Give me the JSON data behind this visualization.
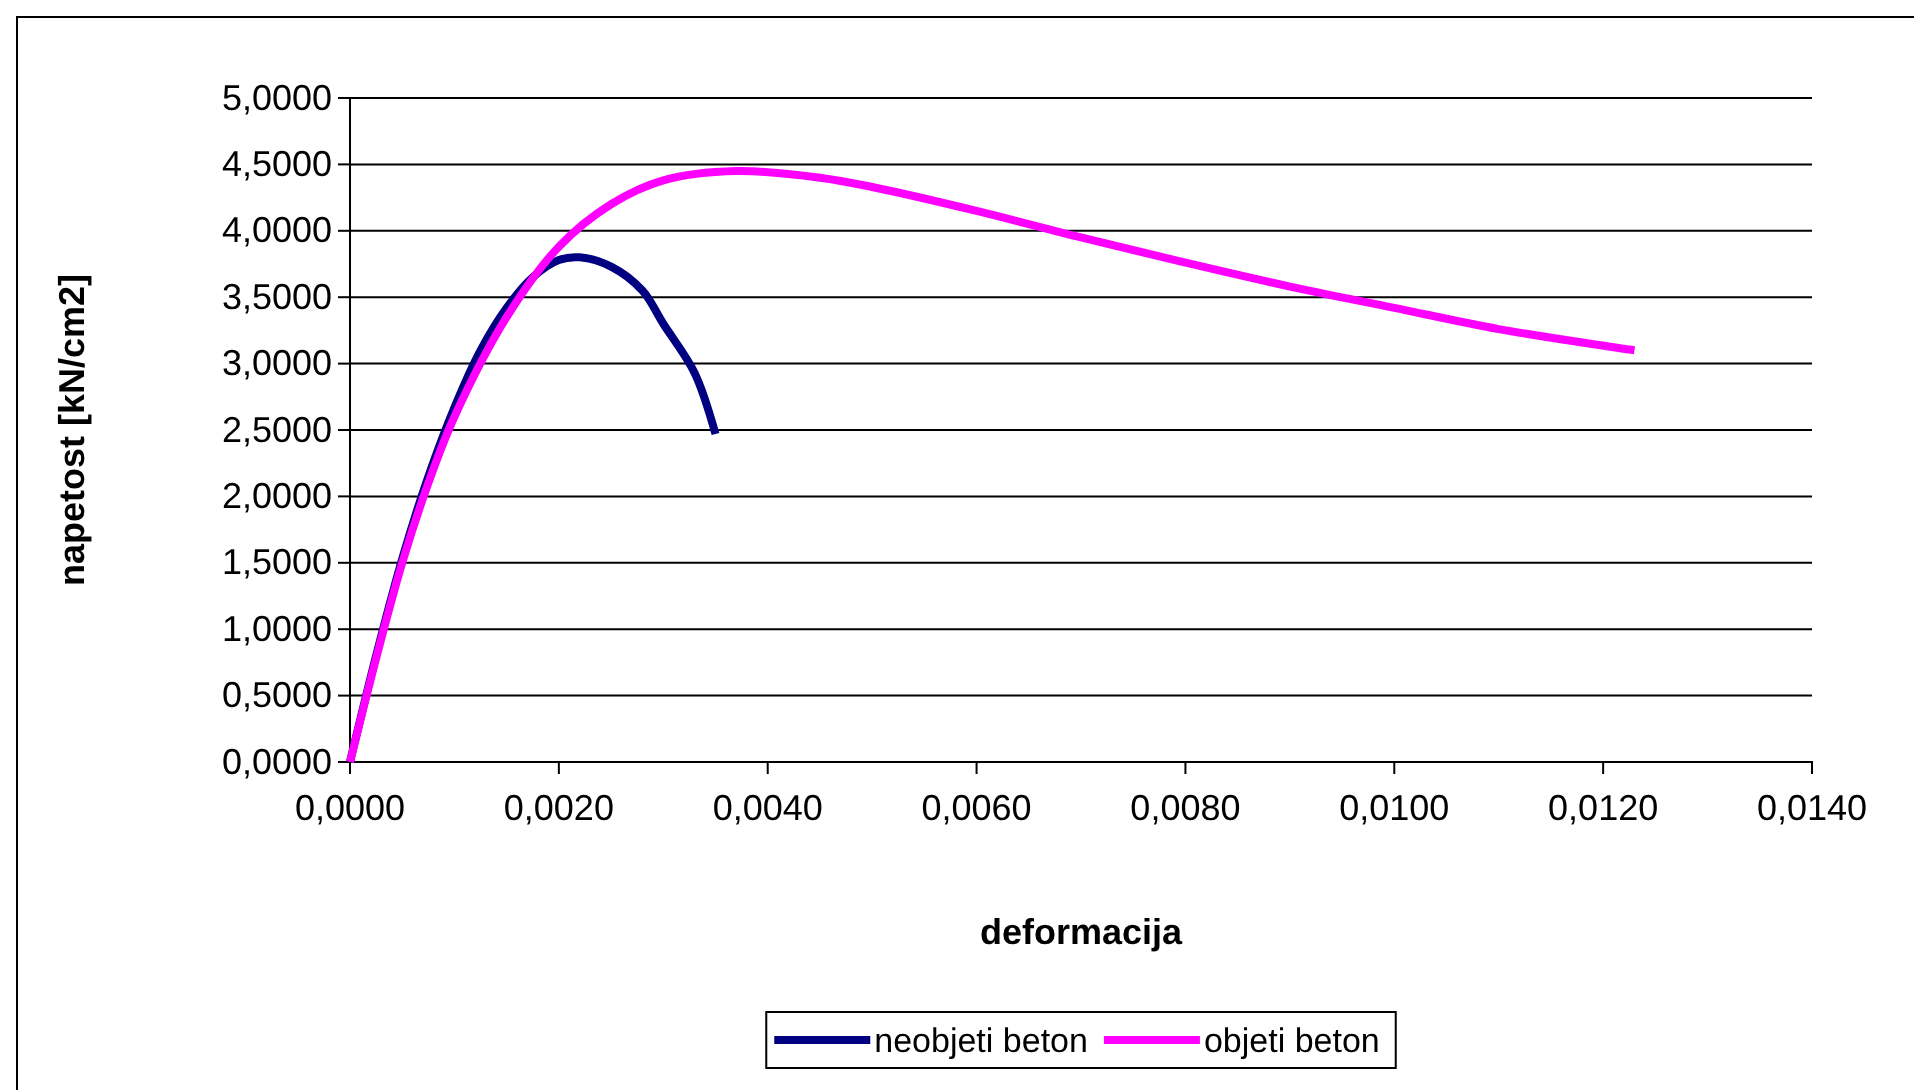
{
  "chart_data": {
    "type": "line",
    "xlabel": "deformacija",
    "ylabel": "napetost [kN/cm2]",
    "xlim": [
      0,
      0.014
    ],
    "ylim": [
      0,
      5
    ],
    "xticks": [
      {
        "value": 0,
        "label": "0,0000"
      },
      {
        "value": 0.002,
        "label": "0,0020"
      },
      {
        "value": 0.004,
        "label": "0,0040"
      },
      {
        "value": 0.006,
        "label": "0,0060"
      },
      {
        "value": 0.008,
        "label": "0,0080"
      },
      {
        "value": 0.01,
        "label": "0,0100"
      },
      {
        "value": 0.012,
        "label": "0,0120"
      },
      {
        "value": 0.014,
        "label": "0,0140"
      }
    ],
    "yticks": [
      {
        "value": 0,
        "label": "0,0000"
      },
      {
        "value": 0.5,
        "label": "0,5000"
      },
      {
        "value": 1,
        "label": "1,0000"
      },
      {
        "value": 1.5,
        "label": "1,5000"
      },
      {
        "value": 2,
        "label": "2,0000"
      },
      {
        "value": 2.5,
        "label": "2,5000"
      },
      {
        "value": 3,
        "label": "3,0000"
      },
      {
        "value": 3.5,
        "label": "3,5000"
      },
      {
        "value": 4,
        "label": "4,0000"
      },
      {
        "value": 4.5,
        "label": "4,5000"
      },
      {
        "value": 5,
        "label": "5,0000"
      }
    ],
    "grid": "y",
    "legend": "bottom",
    "marker": "none",
    "line_style": "solid",
    "series": [
      {
        "name": "neobjeti beton",
        "color": "#000080",
        "x": [
          0,
          0.00025,
          0.0005,
          0.00075,
          0.001,
          0.00125,
          0.0015,
          0.00175,
          0.002,
          0.0022,
          0.0025,
          0.0028,
          0.003,
          0.0033,
          0.0035
        ],
        "values": [
          0,
          0.8,
          1.53,
          2.15,
          2.67,
          3.1,
          3.42,
          3.65,
          3.78,
          3.8,
          3.73,
          3.55,
          3.3,
          2.93,
          2.47
        ]
      },
      {
        "name": "objeti beton",
        "color": "#ff00ff",
        "x": [
          0,
          0.00025,
          0.0005,
          0.00075,
          0.001,
          0.0015,
          0.002,
          0.0025,
          0.003,
          0.0037,
          0.0045,
          0.005,
          0.006,
          0.007,
          0.008,
          0.009,
          0.01,
          0.011,
          0.0123
        ],
        "values": [
          0,
          0.78,
          1.5,
          2.1,
          2.6,
          3.35,
          3.88,
          4.2,
          4.38,
          4.45,
          4.4,
          4.33,
          4.15,
          3.95,
          3.76,
          3.58,
          3.42,
          3.26,
          3.1
        ]
      }
    ]
  }
}
